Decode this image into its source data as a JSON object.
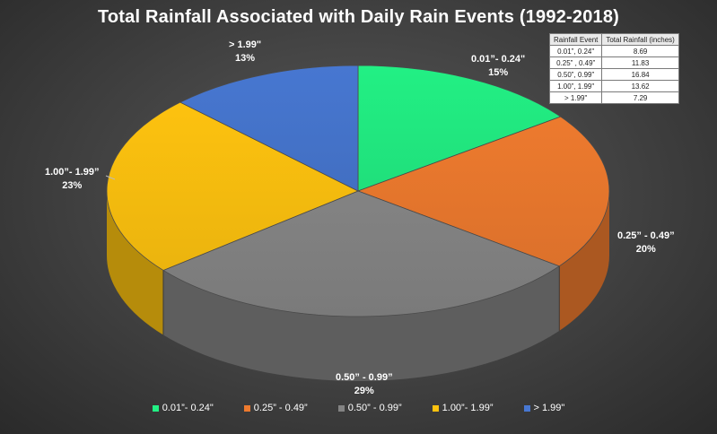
{
  "chart_data": {
    "type": "pie",
    "title": "Total Rainfall Associated with Daily Rain Events (1992-2018)",
    "slices": [
      {
        "label": "0.01”- 0.24\"",
        "percent": "15%",
        "value": 8.69,
        "color": "#22f084"
      },
      {
        "label": "0.25” - 0.49”",
        "percent": "20%",
        "value": 11.83,
        "color": "#ed7a2e"
      },
      {
        "label": "0.50” - 0.99”",
        "percent": "29%",
        "value": 16.84,
        "color": "#838383"
      },
      {
        "label": "1.00”- 1.99”",
        "percent": "23%",
        "value": 13.62,
        "color": "#fdc20f"
      },
      {
        "label": "> 1.99\"",
        "percent": "13%",
        "value": 7.29,
        "color": "#4777d1"
      }
    ],
    "legend": {
      "position": "bottom",
      "entries": [
        "0.01”- 0.24\"",
        "0.25” - 0.49”",
        "0.50” - 0.99”",
        "1.00”- 1.99”",
        "> 1.99\""
      ]
    },
    "data_table": {
      "headers": [
        "Rainfall Event",
        "Total Rainfall (inches)"
      ],
      "rows": [
        [
          "0.01”, 0.24\"",
          "8.69"
        ],
        [
          "0.25” , 0.49”",
          "11.83"
        ],
        [
          "0.50”, 0.99”",
          "16.84"
        ],
        [
          "1.00”, 1.99\"",
          "13.62"
        ],
        [
          "> 1.99\"",
          "7.29"
        ]
      ]
    }
  }
}
